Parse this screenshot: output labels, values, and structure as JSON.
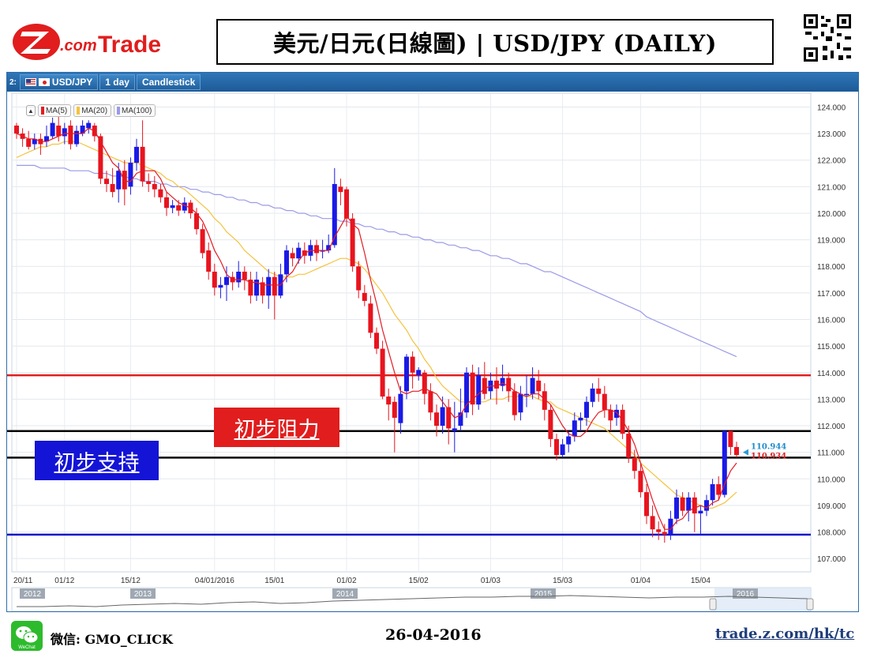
{
  "header": {
    "brand": "Z.com Trade",
    "title": "美元/日元(日線圖) | USD/JPY (DAILY)"
  },
  "toolbar": {
    "panel_number": "2:",
    "symbol": "USD/JPY",
    "timeframe": "1 day",
    "chart_style": "Candlestick"
  },
  "indicators": [
    "MA(5)",
    "MA(20)",
    "MA(100)"
  ],
  "labels": {
    "resistance": "初步阻力",
    "support": "初步支持"
  },
  "footer": {
    "wechat": "微信: GMO_CLICK",
    "date": "26-04-2016",
    "link": "trade.z.com/hk/tc"
  },
  "colors": {
    "up_candle": "#1a1ae6",
    "down_candle": "#e8141e",
    "ma5": "#e31b23",
    "ma20": "#f5c23e",
    "ma100": "#9a9ae8",
    "resistance_line": "#e11d1d",
    "support_line": "#1414c8",
    "level_lines": "#000000"
  },
  "chart_data": {
    "type": "candlestick",
    "symbol": "USD/JPY",
    "timeframe": "1 day",
    "ylim": [
      106.5,
      124.4
    ],
    "y_ticks": [
      "124.000",
      "123.000",
      "122.000",
      "121.000",
      "120.000",
      "119.000",
      "118.000",
      "117.000",
      "116.000",
      "115.000",
      "114.000",
      "113.000",
      "112.000",
      "111.000",
      "110.000",
      "109.000",
      "108.000",
      "107.000"
    ],
    "x_tick_labels": [
      "20/11",
      "01/12",
      "15/12",
      "04/01/2016",
      "15/01",
      "01/02",
      "15/02",
      "01/03",
      "15/03",
      "01/04",
      "15/04"
    ],
    "navigator_years": [
      "2012",
      "2013",
      "2014",
      "2015",
      "2016"
    ],
    "last_prices": {
      "high_tag": "110.944",
      "low_tag": "110.934"
    },
    "horizontal_levels": [
      {
        "value": 113.9,
        "role": "resistance-top"
      },
      {
        "value": 111.8,
        "role": "resistance"
      },
      {
        "value": 110.8,
        "role": "support"
      },
      {
        "value": 107.9,
        "role": "support-bottom"
      }
    ],
    "candles": [
      [
        123.3,
        123.0,
        123.4,
        122.8
      ],
      [
        123.0,
        122.8,
        123.2,
        122.5
      ],
      [
        122.8,
        122.5,
        123.1,
        122.4
      ],
      [
        122.6,
        122.8,
        123.0,
        122.4
      ],
      [
        122.8,
        122.6,
        123.0,
        122.2
      ],
      [
        122.7,
        122.9,
        123.3,
        122.5
      ],
      [
        122.9,
        123.4,
        123.6,
        122.8
      ],
      [
        123.3,
        122.9,
        123.8,
        122.7
      ],
      [
        122.9,
        123.2,
        123.4,
        122.6
      ],
      [
        123.3,
        122.6,
        123.5,
        122.4
      ],
      [
        122.6,
        123.1,
        123.3,
        122.5
      ],
      [
        123.0,
        123.3,
        123.5,
        122.9
      ],
      [
        123.2,
        123.4,
        123.5,
        123.0
      ],
      [
        123.3,
        122.9,
        123.4,
        122.7
      ],
      [
        122.9,
        121.3,
        123.0,
        121.1
      ],
      [
        121.3,
        121.1,
        121.6,
        120.8
      ],
      [
        121.1,
        120.8,
        121.7,
        120.6
      ],
      [
        120.9,
        121.6,
        121.9,
        120.4
      ],
      [
        121.6,
        120.9,
        122.0,
        120.3
      ],
      [
        121.0,
        121.9,
        122.1,
        120.7
      ],
      [
        121.9,
        122.5,
        122.8,
        121.6
      ],
      [
        122.5,
        121.2,
        123.5,
        121.0
      ],
      [
        121.2,
        121.1,
        121.5,
        120.8
      ],
      [
        121.1,
        120.9,
        121.4,
        120.6
      ],
      [
        120.9,
        120.6,
        121.1,
        120.4
      ],
      [
        120.6,
        120.2,
        120.8,
        119.9
      ],
      [
        120.2,
        120.3,
        120.5,
        120.0
      ],
      [
        120.3,
        120.1,
        120.5,
        119.9
      ],
      [
        120.1,
        120.4,
        120.6,
        120.0
      ],
      [
        120.4,
        120.0,
        120.5,
        119.8
      ],
      [
        120.0,
        119.4,
        120.2,
        119.2
      ],
      [
        119.4,
        118.5,
        119.6,
        118.3
      ],
      [
        118.6,
        117.8,
        118.9,
        117.5
      ],
      [
        117.8,
        117.2,
        118.1,
        116.9
      ],
      [
        117.2,
        117.3,
        117.6,
        116.8
      ],
      [
        117.3,
        117.6,
        118.0,
        116.7
      ],
      [
        117.6,
        117.4,
        117.8,
        117.1
      ],
      [
        117.4,
        117.8,
        118.2,
        117.2
      ],
      [
        117.8,
        117.5,
        118.0,
        117.1
      ],
      [
        117.5,
        116.9,
        117.8,
        116.6
      ],
      [
        116.9,
        117.5,
        117.8,
        116.7
      ],
      [
        117.4,
        116.9,
        117.6,
        116.6
      ],
      [
        116.9,
        117.6,
        117.9,
        116.4
      ],
      [
        117.6,
        116.9,
        117.8,
        116.0
      ],
      [
        116.9,
        117.7,
        118.1,
        116.8
      ],
      [
        117.7,
        118.6,
        118.8,
        117.4
      ],
      [
        118.5,
        118.3,
        118.7,
        118.0
      ],
      [
        118.3,
        118.7,
        118.9,
        118.1
      ],
      [
        118.6,
        118.4,
        118.9,
        118.1
      ],
      [
        118.4,
        118.8,
        119.0,
        118.2
      ],
      [
        118.8,
        118.5,
        119.0,
        118.2
      ],
      [
        118.6,
        118.6,
        119.0,
        118.3
      ],
      [
        118.6,
        118.8,
        119.2,
        118.5
      ],
      [
        118.8,
        121.1,
        121.7,
        118.7
      ],
      [
        121.0,
        120.8,
        121.3,
        120.3
      ],
      [
        120.9,
        119.8,
        121.0,
        119.5
      ],
      [
        119.8,
        118.0,
        120.0,
        117.8
      ],
      [
        118.0,
        117.1,
        118.2,
        116.8
      ],
      [
        117.0,
        116.7,
        117.3,
        116.5
      ],
      [
        116.6,
        115.5,
        116.9,
        115.3
      ],
      [
        115.5,
        114.9,
        115.7,
        114.7
      ],
      [
        114.9,
        113.1,
        115.2,
        113.0
      ],
      [
        113.1,
        112.8,
        113.4,
        112.2
      ],
      [
        112.9,
        112.3,
        113.1,
        111.0
      ],
      [
        112.1,
        113.2,
        113.5,
        111.7
      ],
      [
        113.3,
        114.6,
        114.7,
        113.0
      ],
      [
        114.6,
        114.0,
        114.8,
        113.4
      ],
      [
        113.9,
        114.1,
        114.2,
        113.7
      ],
      [
        114.0,
        113.2,
        114.1,
        112.8
      ],
      [
        113.3,
        112.5,
        113.6,
        112.2
      ],
      [
        112.5,
        112.0,
        112.8,
        111.6
      ],
      [
        112.0,
        112.7,
        113.1,
        111.7
      ],
      [
        112.7,
        111.9,
        113.0,
        111.3
      ],
      [
        111.8,
        111.9,
        112.9,
        111.0
      ],
      [
        112.0,
        112.5,
        113.4,
        111.8
      ],
      [
        112.5,
        114.0,
        114.2,
        112.3
      ],
      [
        114.0,
        112.8,
        114.3,
        112.4
      ],
      [
        112.8,
        113.9,
        114.2,
        112.6
      ],
      [
        113.8,
        113.2,
        114.4,
        113.0
      ],
      [
        113.3,
        113.7,
        114.0,
        113.0
      ],
      [
        113.7,
        113.4,
        114.2,
        112.8
      ],
      [
        113.5,
        113.8,
        114.3,
        113.3
      ],
      [
        113.8,
        113.3,
        114.0,
        112.9
      ],
      [
        113.3,
        112.4,
        113.6,
        112.2
      ],
      [
        112.5,
        113.2,
        113.5,
        112.2
      ],
      [
        113.2,
        113.2,
        113.9,
        112.7
      ],
      [
        113.2,
        113.8,
        114.2,
        113.0
      ],
      [
        113.7,
        113.3,
        114.1,
        113.0
      ],
      [
        113.3,
        112.6,
        113.6,
        112.2
      ],
      [
        112.6,
        111.5,
        112.8,
        111.2
      ],
      [
        111.5,
        110.9,
        111.7,
        110.7
      ],
      [
        110.9,
        111.3,
        111.5,
        110.8
      ],
      [
        111.3,
        111.6,
        111.8,
        111.0
      ],
      [
        111.6,
        112.2,
        112.5,
        111.4
      ],
      [
        112.2,
        112.3,
        112.5,
        111.8
      ],
      [
        112.3,
        112.9,
        113.1,
        112.0
      ],
      [
        112.9,
        113.4,
        113.6,
        112.7
      ],
      [
        113.4,
        113.2,
        113.8,
        112.9
      ],
      [
        113.2,
        112.6,
        113.5,
        112.3
      ],
      [
        112.6,
        112.2,
        112.8,
        111.8
      ],
      [
        112.3,
        112.6,
        112.8,
        112.0
      ],
      [
        112.6,
        111.7,
        112.8,
        111.5
      ],
      [
        111.7,
        110.8,
        112.0,
        110.6
      ],
      [
        110.8,
        110.3,
        111.1,
        110.0
      ],
      [
        110.3,
        109.5,
        110.6,
        109.3
      ],
      [
        109.5,
        108.6,
        109.8,
        108.3
      ],
      [
        108.6,
        108.1,
        109.0,
        107.8
      ],
      [
        108.1,
        108.0,
        108.4,
        107.7
      ],
      [
        108.0,
        107.9,
        108.3,
        107.6
      ],
      [
        107.9,
        108.5,
        108.8,
        107.7
      ],
      [
        108.5,
        109.3,
        109.6,
        108.3
      ],
      [
        109.3,
        108.8,
        109.5,
        108.6
      ],
      [
        108.8,
        109.3,
        109.5,
        108.4
      ],
      [
        109.3,
        108.7,
        109.5,
        108.0
      ],
      [
        108.7,
        108.8,
        109.0,
        107.9
      ],
      [
        108.8,
        109.2,
        109.4,
        108.6
      ],
      [
        109.2,
        109.8,
        110.0,
        109.0
      ],
      [
        109.8,
        109.4,
        110.1,
        109.2
      ],
      [
        109.4,
        111.8,
        111.8,
        109.3
      ],
      [
        111.8,
        111.2,
        111.8,
        110.9
      ],
      [
        111.2,
        110.9,
        111.4,
        110.8
      ]
    ],
    "ma5": [
      123.0,
      122.9,
      122.8,
      122.8,
      122.7,
      122.7,
      122.8,
      122.9,
      123.0,
      123.0,
      123.0,
      123.0,
      123.2,
      123.1,
      122.7,
      122.3,
      121.9,
      121.7,
      121.2,
      121.2,
      121.5,
      121.6,
      121.6,
      121.6,
      121.3,
      120.8,
      120.6,
      120.4,
      120.3,
      120.2,
      120.0,
      119.7,
      119.2,
      118.6,
      118.2,
      117.7,
      117.5,
      117.5,
      117.5,
      117.4,
      117.4,
      117.3,
      117.3,
      117.3,
      117.3,
      117.6,
      117.8,
      118.2,
      118.5,
      118.6,
      118.6,
      118.6,
      118.6,
      119.1,
      119.5,
      119.9,
      119.6,
      119.4,
      118.5,
      117.5,
      116.6,
      115.6,
      114.8,
      114.0,
      113.3,
      113.2,
      113.3,
      113.3,
      113.4,
      113.3,
      113.2,
      112.9,
      112.6,
      112.3,
      112.4,
      112.8,
      113.0,
      113.2,
      113.4,
      113.5,
      113.5,
      113.6,
      113.5,
      113.3,
      113.2,
      113.1,
      113.2,
      113.2,
      113.0,
      112.8,
      112.4,
      112.0,
      111.7,
      111.6,
      111.6,
      111.8,
      112.2,
      112.5,
      112.6,
      112.6,
      112.5,
      112.2,
      111.8,
      111.3,
      110.6,
      109.9,
      109.2,
      108.6,
      108.1,
      108.1,
      108.4,
      108.5,
      108.8,
      108.9,
      109.0,
      108.9,
      109.1,
      109.2,
      109.8,
      110.3,
      110.6
    ],
    "ma20": [
      122.1,
      122.2,
      122.3,
      122.4,
      122.5,
      122.5,
      122.6,
      122.6,
      122.7,
      122.7,
      122.7,
      122.6,
      122.5,
      122.4,
      122.3,
      122.2,
      122.1,
      122.0,
      121.9,
      121.9,
      121.9,
      121.8,
      121.7,
      121.6,
      121.5,
      121.3,
      121.2,
      121.0,
      120.9,
      120.7,
      120.5,
      120.3,
      120.1,
      119.8,
      119.6,
      119.3,
      119.1,
      118.9,
      118.6,
      118.4,
      118.2,
      118.0,
      117.8,
      117.7,
      117.6,
      117.6,
      117.6,
      117.7,
      117.7,
      117.8,
      117.9,
      118.0,
      118.1,
      118.2,
      118.3,
      118.3,
      118.2,
      118.1,
      117.9,
      117.6,
      117.3,
      117.0,
      116.6,
      116.2,
      115.9,
      115.6,
      115.2,
      114.9,
      114.5,
      114.2,
      113.8,
      113.5,
      113.3,
      113.1,
      112.9,
      112.9,
      112.9,
      112.9,
      112.9,
      113.0,
      113.0,
      113.0,
      113.1,
      113.1,
      113.1,
      113.1,
      113.1,
      113.0,
      112.9,
      112.9,
      112.7,
      112.6,
      112.5,
      112.4,
      112.3,
      112.2,
      112.1,
      112.0,
      111.9,
      111.7,
      111.5,
      111.3,
      111.1,
      110.9,
      110.6,
      110.4,
      110.2,
      110.0,
      109.8,
      109.6,
      109.4,
      109.3,
      109.2,
      109.1,
      109.0,
      108.9,
      108.9,
      109.0,
      109.1,
      109.3,
      109.5
    ],
    "ma100": [
      121.8,
      121.8,
      121.8,
      121.8,
      121.7,
      121.7,
      121.7,
      121.7,
      121.7,
      121.6,
      121.6,
      121.6,
      121.6,
      121.5,
      121.5,
      121.5,
      121.4,
      121.4,
      121.4,
      121.3,
      121.3,
      121.2,
      121.2,
      121.2,
      121.1,
      121.1,
      121.0,
      121.0,
      121.0,
      120.9,
      120.9,
      120.8,
      120.8,
      120.7,
      120.7,
      120.6,
      120.6,
      120.5,
      120.5,
      120.4,
      120.4,
      120.3,
      120.3,
      120.2,
      120.2,
      120.1,
      120.1,
      120.0,
      120.0,
      119.9,
      119.9,
      119.8,
      119.8,
      119.8,
      119.7,
      119.7,
      119.6,
      119.6,
      119.5,
      119.5,
      119.4,
      119.4,
      119.3,
      119.3,
      119.2,
      119.2,
      119.1,
      119.1,
      119.0,
      119.0,
      118.9,
      118.9,
      118.8,
      118.8,
      118.7,
      118.7,
      118.6,
      118.6,
      118.5,
      118.4,
      118.4,
      118.3,
      118.3,
      118.2,
      118.1,
      118.1,
      118.0,
      117.9,
      117.8,
      117.8,
      117.7,
      117.6,
      117.5,
      117.4,
      117.3,
      117.2,
      117.1,
      117.0,
      116.9,
      116.8,
      116.7,
      116.6,
      116.5,
      116.4,
      116.3,
      116.1,
      116.0,
      115.9,
      115.8,
      115.7,
      115.6,
      115.5,
      115.4,
      115.3,
      115.2,
      115.1,
      115.0,
      114.9,
      114.8,
      114.7,
      114.6
    ]
  }
}
